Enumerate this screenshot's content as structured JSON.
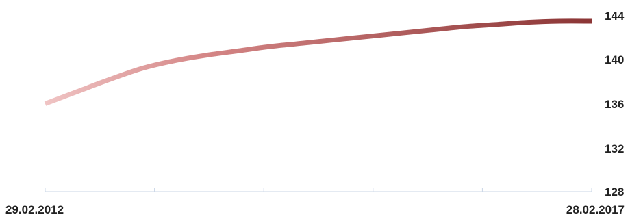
{
  "chart_data": {
    "type": "line",
    "x_start_label": "29.02.2012",
    "x_end_label": "28.02.2017",
    "y_ticks": [
      "128",
      "132",
      "136",
      "140",
      "144"
    ],
    "ylim": [
      128,
      145
    ],
    "y_axis_position": "right",
    "grid": false,
    "series": [
      {
        "values": [
          136.0,
          137.1,
          138.2,
          139.2,
          139.9,
          140.4,
          140.8,
          141.2,
          141.5,
          141.8,
          142.1,
          142.4,
          142.7,
          143.0,
          143.2,
          143.4,
          143.5,
          143.5
        ],
        "color_start": "#f0c4c4",
        "color_end": "#8b3535"
      }
    ],
    "axis_color": "#c9d5e6"
  }
}
